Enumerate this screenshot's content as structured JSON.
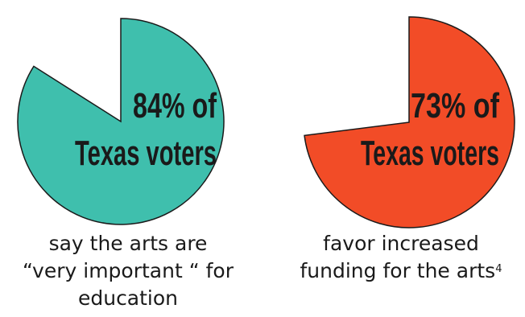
{
  "chart_data": [
    {
      "type": "pie",
      "value": 84,
      "unit": "%",
      "color": "#3fbfad",
      "label_lines": [
        "84% of",
        "Texas voters"
      ],
      "caption_lines": [
        "say the arts are",
        "“very important “ for",
        "education"
      ]
    },
    {
      "type": "pie",
      "value": 73,
      "unit": "%",
      "color": "#f24c27",
      "label_lines": [
        "73% of",
        "Texas voters"
      ],
      "caption_lines": [
        "favor increased",
        "funding for the arts"
      ],
      "footnote": "4"
    }
  ]
}
